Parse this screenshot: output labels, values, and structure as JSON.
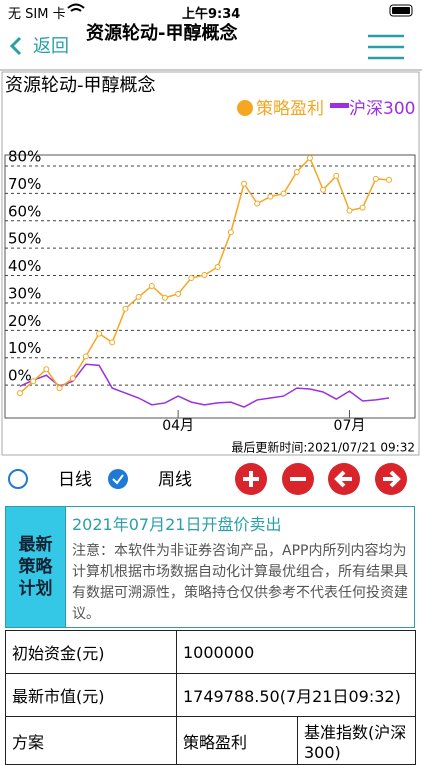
{
  "status_bar": {
    "carrier": "无 SIM 卡",
    "time": "上午9:34"
  },
  "nav": {
    "back": "返回",
    "title": "资源轮动-甲醇概念"
  },
  "chart_data": {
    "type": "line",
    "title": "资源轮动-甲醇概念",
    "categories": [
      null,
      null,
      null,
      null,
      null,
      null,
      null,
      null,
      null,
      null,
      null,
      null,
      "04月",
      null,
      null,
      null,
      null,
      null,
      null,
      null,
      null,
      null,
      null,
      null,
      null,
      "07月",
      null,
      null,
      null
    ],
    "series": [
      {
        "name": "策略盈利",
        "color": "#f5a623",
        "markers": true,
        "values": [
          -2.9,
          1.4,
          5.8,
          -1.1,
          2.5,
          10.5,
          18.8,
          15.6,
          27.9,
          32.2,
          36.2,
          31.9,
          33.3,
          39.1,
          40.2,
          43.1,
          55.8,
          73.5,
          66.3,
          68.8,
          69.9,
          77.8,
          82.9,
          71.3,
          76.4,
          63.7,
          64.8,
          75.3,
          74.9
        ]
      },
      {
        "name": "沪深300",
        "color": "#9b30e0",
        "markers": false,
        "values": [
          -0.4,
          1.8,
          3.6,
          -0.4,
          1.4,
          7.6,
          7.2,
          -1.1,
          -2.9,
          -4.7,
          -7.2,
          -6.5,
          -4,
          -6.2,
          -7.2,
          -6.5,
          -6.2,
          -8,
          -5.4,
          -4.7,
          -4,
          -1.1,
          -1.4,
          -2.5,
          -5.1,
          -2.2,
          -5.8,
          -5.4,
          -4.7
        ]
      }
    ],
    "ylim": [
      -12,
      84
    ],
    "yticks": [
      {
        "value": 0,
        "label": "0%"
      },
      {
        "value": 10,
        "label": "10%"
      },
      {
        "value": 20,
        "label": "20%"
      },
      {
        "value": 30,
        "label": "30%"
      },
      {
        "value": 40,
        "label": "40%"
      },
      {
        "value": 50,
        "label": "50%"
      },
      {
        "value": 60,
        "label": "60%"
      },
      {
        "value": 70,
        "label": "70%"
      },
      {
        "value": 80,
        "label": "80%"
      }
    ],
    "grid": true,
    "legend": "top-right",
    "updated": "最后更新时间:2021/07/21 09:32"
  },
  "period_options": [
    "日线",
    "周线"
  ],
  "selected_period": 1,
  "plan": {
    "header": "最新策略计划",
    "headline": "2021年07月21日开盘价卖出",
    "note": "注意：本软件为非证券咨询产品，APP内所列内容均为计算机根据市场数据自动化计算最优组合，所有结果具有数据可溯源性，策略持仓仅供参考不代表任何投资建议。"
  },
  "table": {
    "rows": [
      [
        "初始资金(元)",
        "1000000"
      ],
      [
        "最新市值(元)",
        "1749788.50(7月21日09:32)"
      ],
      [
        "方案",
        "策略盈利",
        "基准指数(沪深300)"
      ]
    ]
  }
}
